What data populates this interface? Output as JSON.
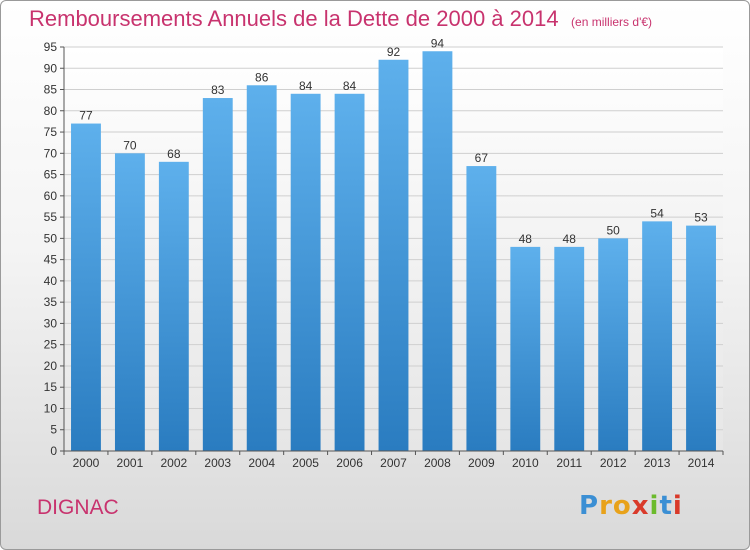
{
  "chart_data": {
    "type": "bar",
    "title": "Remboursements Annuels de la Dette de 2000 à 2014",
    "subtitle": "(en milliers d'€)",
    "categories": [
      "2000",
      "2001",
      "2002",
      "2003",
      "2004",
      "2005",
      "2006",
      "2007",
      "2008",
      "2009",
      "2010",
      "2011",
      "2012",
      "2013",
      "2014"
    ],
    "values": [
      77,
      70,
      68,
      83,
      86,
      84,
      84,
      92,
      94,
      67,
      48,
      48,
      50,
      54,
      53
    ],
    "xlabel": "",
    "ylabel": "",
    "ylim": [
      0,
      95
    ],
    "yticks": [
      0,
      5,
      10,
      15,
      20,
      25,
      30,
      35,
      40,
      45,
      50,
      55,
      60,
      65,
      70,
      75,
      80,
      85,
      90,
      95
    ],
    "grid": true,
    "bar_color": "#3f95d6"
  },
  "footer": {
    "commune": "DIGNAC",
    "logo_text": "Proxiti",
    "logo_colors": [
      "#3b8fd4",
      "#e8a21a",
      "#e8a21a",
      "#d93a2a",
      "#6cbb2c",
      "#3b8fd4",
      "#d93a2a"
    ]
  }
}
